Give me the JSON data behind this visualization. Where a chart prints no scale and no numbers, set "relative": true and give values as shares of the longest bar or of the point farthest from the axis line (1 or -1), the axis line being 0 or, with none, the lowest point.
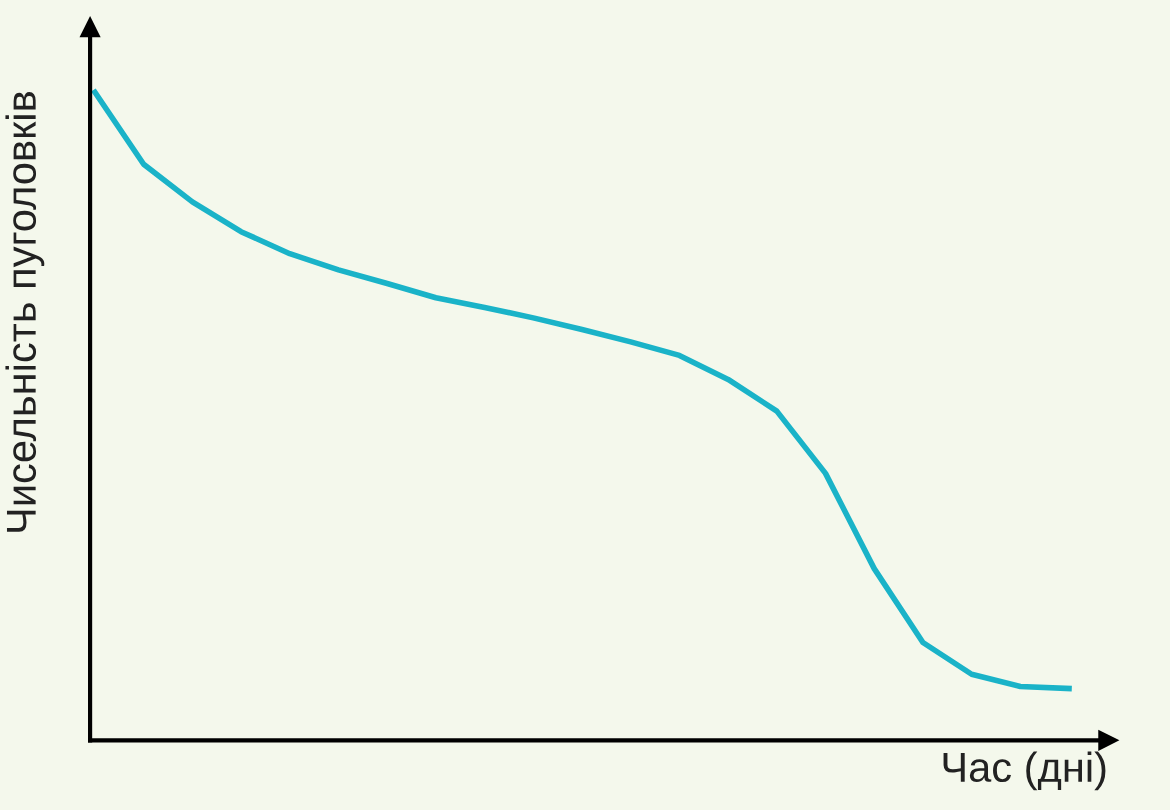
{
  "chart_data": {
    "type": "line",
    "relative": true,
    "xlabel": "Час (дні)",
    "ylabel": "Чисельність пуголовків",
    "categories": [
      null,
      null,
      null,
      null,
      null,
      null,
      null,
      null,
      null,
      null,
      null,
      null,
      null,
      null,
      null,
      null,
      null,
      null,
      null,
      null,
      null
    ],
    "series": [
      {
        "color": "#1ab3c8",
        "values": [
          1.0,
          0.889,
          0.831,
          0.785,
          0.751,
          0.726,
          0.705,
          0.683,
          0.668,
          0.652,
          0.634,
          0.615,
          0.594,
          0.557,
          0.508,
          0.412,
          0.265,
          0.151,
          0.102,
          0.083,
          0.08
        ]
      }
    ],
    "legend": false,
    "marker": "none",
    "line_style": "solid"
  }
}
